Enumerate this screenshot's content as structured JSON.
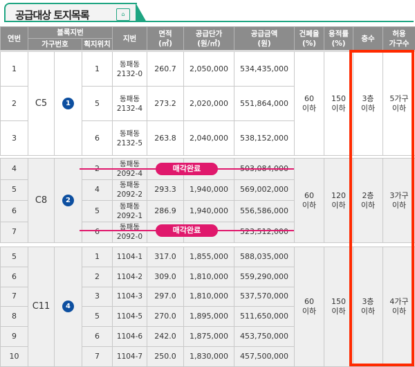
{
  "title": "공급대상 토지목록",
  "title_icon": "document-icon",
  "header": {
    "no": "연번",
    "block": "블록지번",
    "household": "가구번호",
    "position": "획지위치",
    "lot": "지번",
    "area": "면적",
    "area_unit": "(㎡)",
    "unit_price": "공급단가",
    "unit_price_unit": "(원/㎡)",
    "amount": "공급금액",
    "amount_unit": "(원)",
    "coverage": "건폐율",
    "coverage_unit": "(%)",
    "far": "용적률",
    "far_unit": "(%)",
    "floors": "층수",
    "allowed": "허용",
    "allowed2": "가구수"
  },
  "groups": [
    {
      "block": "C5",
      "badge": "1",
      "coverage": "60\n이하",
      "far": "150\n이하",
      "floors": "3층\n이하",
      "households": "5가구\n이하",
      "rows": [
        {
          "no": "1",
          "pos": "1",
          "lot": "동패동\n2132-0",
          "area": "260.7",
          "price": "2,050,000",
          "amount": "534,435,000"
        },
        {
          "no": "2",
          "pos": "5",
          "lot": "동패동\n2132-4",
          "area": "273.2",
          "price": "2,020,000",
          "amount": "551,864,000"
        },
        {
          "no": "3",
          "pos": "6",
          "lot": "동패동\n2132-5",
          "area": "263.8",
          "price": "2,040,000",
          "amount": "538,152,000"
        }
      ]
    },
    {
      "block": "C8",
      "badge": "2",
      "coverage": "60\n이하",
      "far": "120\n이하",
      "floors": "2층\n이하",
      "households": "3가구\n이하",
      "rows": [
        {
          "no": "4",
          "pos": "2",
          "lot": "동패동\n2092-4",
          "area": "",
          "price": "",
          "amount": "503,084,000",
          "sold": "매각완료"
        },
        {
          "no": "5",
          "pos": "4",
          "lot": "동패동\n2092-2",
          "area": "293.3",
          "price": "1,940,000",
          "amount": "569,002,000"
        },
        {
          "no": "6",
          "pos": "5",
          "lot": "동패동\n2092-1",
          "area": "286.9",
          "price": "1,940,000",
          "amount": "556,586,000"
        },
        {
          "no": "7",
          "pos": "6",
          "lot": "동패동\n2092-0",
          "area": "",
          "price": "",
          "amount": "523,512,000",
          "sold": "매각완료"
        }
      ]
    },
    {
      "block": "C11",
      "badge": "4",
      "coverage": "60\n이하",
      "far": "150\n이하",
      "floors": "3층\n이하",
      "households": "4가구\n이하",
      "rows": [
        {
          "no": "5",
          "pos": "1",
          "lot": "1104-1",
          "area": "317.0",
          "price": "1,855,000",
          "amount": "588,035,000"
        },
        {
          "no": "6",
          "pos": "2",
          "lot": "1104-2",
          "area": "309.0",
          "price": "1,810,000",
          "amount": "559,290,000"
        },
        {
          "no": "7",
          "pos": "3",
          "lot": "1104-3",
          "area": "297.0",
          "price": "1,810,000",
          "amount": "537,570,000"
        },
        {
          "no": "8",
          "pos": "5",
          "lot": "1104-5",
          "area": "270.0",
          "price": "1,895,000",
          "amount": "511,650,000"
        },
        {
          "no": "9",
          "pos": "6",
          "lot": "1104-6",
          "area": "242.0",
          "price": "1,875,000",
          "amount": "453,750,000"
        },
        {
          "no": "10",
          "pos": "7",
          "lot": "1104-7",
          "area": "250.0",
          "price": "1,830,000",
          "amount": "457,500,000"
        }
      ]
    }
  ],
  "colors": {
    "accent": "#1fa582",
    "header_bg": "#8c8c8c",
    "sold": "#e0186c",
    "highlight": "#ff2a00",
    "badge": "#0d4fa0"
  }
}
